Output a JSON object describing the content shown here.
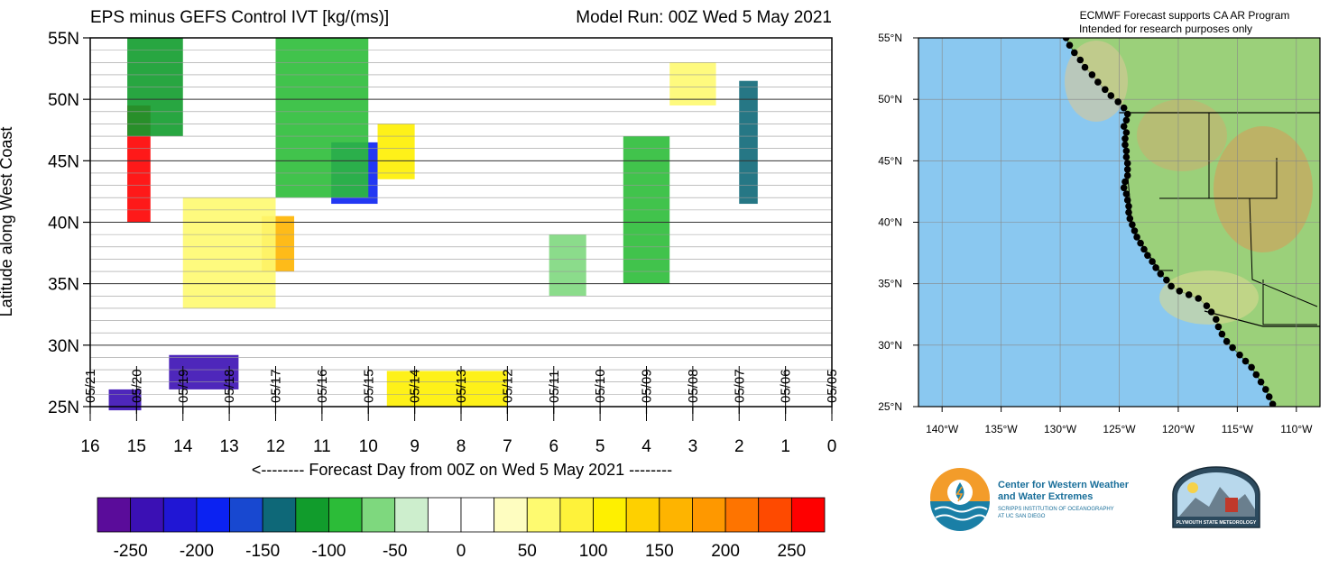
{
  "left_panel": {
    "title_left": "EPS minus GEFS Control IVT [kg/(ms)]",
    "title_right": "Model Run: 00Z Wed 5 May 2021",
    "ylabel": "Latitude along West Coast",
    "xlabel": "<-------- Forecast Day from 00Z on Wed 5 May 2021 --------"
  },
  "right_panel": {
    "note_line1": "ECMWF Forecast supports CA AR Program",
    "note_line2": "Intended for research purposes only"
  },
  "logos": {
    "cw3e_line1": "Center for Western Weather",
    "cw3e_line2": "and Water Extremes",
    "cw3e_line3": "SCRIPPS INSTITUTION OF OCEANOGRAPHY",
    "cw3e_line4": "AT UC SAN DIEGO",
    "psu_text": "PLYMOUTH STATE METEOROLOGY"
  },
  "chart_data": [
    {
      "type": "heatmap",
      "title": "EPS minus GEFS Control IVT [kg/(ms)]",
      "subtitle": "Model Run: 00Z Wed 5 May 2021",
      "xlabel": "<-------- Forecast Day from 00Z on Wed 5 May 2021 --------",
      "ylabel": "Latitude along West Coast",
      "x_reversed": true,
      "xlim": [
        16,
        0
      ],
      "ylim": [
        25,
        55
      ],
      "x_ticks": [
        16,
        15,
        14,
        13,
        12,
        11,
        10,
        9,
        8,
        7,
        6,
        5,
        4,
        3,
        2,
        1,
        0
      ],
      "y_ticks": [
        {
          "value": 25,
          "label": "25N"
        },
        {
          "value": 30,
          "label": "30N"
        },
        {
          "value": 35,
          "label": "35N"
        },
        {
          "value": 40,
          "label": "40N"
        },
        {
          "value": 45,
          "label": "45N"
        },
        {
          "value": 50,
          "label": "50N"
        },
        {
          "value": 55,
          "label": "55N"
        }
      ],
      "date_labels": [
        {
          "day": 0,
          "label": "05/05"
        },
        {
          "day": 1,
          "label": "05/06"
        },
        {
          "day": 2,
          "label": "05/07"
        },
        {
          "day": 3,
          "label": "05/08"
        },
        {
          "day": 4,
          "label": "05/09"
        },
        {
          "day": 5,
          "label": "05/10"
        },
        {
          "day": 6,
          "label": "05/11"
        },
        {
          "day": 7,
          "label": "05/12"
        },
        {
          "day": 8,
          "label": "05/13"
        },
        {
          "day": 9,
          "label": "05/14"
        },
        {
          "day": 10,
          "label": "05/15"
        },
        {
          "day": 11,
          "label": "05/16"
        },
        {
          "day": 12,
          "label": "05/17"
        },
        {
          "day": 13,
          "label": "05/18"
        },
        {
          "day": 14,
          "label": "05/19"
        },
        {
          "day": 15,
          "label": "05/20"
        },
        {
          "day": 16,
          "label": "05/21"
        }
      ],
      "colorbar": {
        "labels": [
          "-250",
          "-200",
          "-150",
          "-100",
          "-50",
          "0",
          "50",
          "100",
          "150",
          "200",
          "250"
        ],
        "colors": [
          "#5a0c9a",
          "#3b10b4",
          "#2016d4",
          "#0b22f2",
          "#1848d0",
          "#0e6878",
          "#119c2c",
          "#2cbc38",
          "#7ed87e",
          "#cdeecd",
          "#ffffff",
          "#ffffff",
          "#fefdc0",
          "#fefa70",
          "#fef23a",
          "#fef000",
          "#fed000",
          "#feb400",
          "#fe9800",
          "#fe7400",
          "#fe4a00",
          "#fe0000"
        ]
      },
      "features": [
        {
          "day": [
            14.7,
            15.2
          ],
          "lat": [
            40.0,
            49.5
          ],
          "value": 250
        },
        {
          "day": [
            14.9,
            15.6
          ],
          "lat": [
            24.7,
            26.4
          ],
          "value": -250
        },
        {
          "day": [
            12.8,
            14.3
          ],
          "lat": [
            26.4,
            29.2
          ],
          "value": -230
        },
        {
          "day": [
            9.8,
            10.8
          ],
          "lat": [
            41.5,
            46.5
          ],
          "value": -180
        },
        {
          "day": [
            14.0,
            15.2
          ],
          "lat": [
            47.0,
            55.0
          ],
          "value": -120
        },
        {
          "day": [
            10.0,
            12.0
          ],
          "lat": [
            42.0,
            55.0
          ],
          "value": -90
        },
        {
          "day": [
            11.6,
            12.3
          ],
          "lat": [
            36.0,
            40.5
          ],
          "value": 150
        },
        {
          "day": [
            7.0,
            9.6
          ],
          "lat": [
            25.0,
            27.9
          ],
          "value": 100
        },
        {
          "day": [
            9.0,
            9.8
          ],
          "lat": [
            43.5,
            48.0
          ],
          "value": 110
        },
        {
          "day": [
            3.5,
            4.5
          ],
          "lat": [
            35.0,
            47.0
          ],
          "value": -90
        },
        {
          "day": [
            1.6,
            2.0
          ],
          "lat": [
            41.5,
            51.5
          ],
          "value": -140
        },
        {
          "day": [
            2.5,
            3.5
          ],
          "lat": [
            49.5,
            53.0
          ],
          "value": 70
        },
        {
          "day": [
            5.3,
            6.1
          ],
          "lat": [
            34.0,
            39.0
          ],
          "value": -60
        },
        {
          "day": [
            12.0,
            14.0
          ],
          "lat": [
            33.0,
            42.0
          ],
          "value": 60
        },
        {
          "day": [
            0.0,
            16.0
          ],
          "lat": [
            25.0,
            55.0
          ],
          "value": 0
        }
      ]
    },
    {
      "type": "map",
      "note": [
        "ECMWF Forecast supports CA AR Program",
        "Intended for research purposes only"
      ],
      "lon_ticks": [
        "140°W",
        "135°W",
        "130°W",
        "125°W",
        "120°W",
        "115°W",
        "110°W"
      ],
      "lat_ticks": [
        "25°N",
        "30°N",
        "35°N",
        "40°N",
        "45°N",
        "50°N",
        "55°N"
      ],
      "lon_range": [
        -142,
        -108
      ],
      "lat_range": [
        25,
        55
      ],
      "coast_points": [
        [
          -129.5,
          55.0
        ],
        [
          -129.2,
          54.4
        ],
        [
          -128.8,
          53.8
        ],
        [
          -128.3,
          53.2
        ],
        [
          -127.9,
          52.6
        ],
        [
          -127.3,
          52.0
        ],
        [
          -126.8,
          51.4
        ],
        [
          -126.2,
          50.8
        ],
        [
          -125.7,
          50.3
        ],
        [
          -125.1,
          49.8
        ],
        [
          -124.6,
          49.3
        ],
        [
          -124.3,
          48.8
        ],
        [
          -124.4,
          48.3
        ],
        [
          -124.6,
          47.8
        ],
        [
          -124.4,
          47.3
        ],
        [
          -124.5,
          46.8
        ],
        [
          -124.5,
          46.3
        ],
        [
          -124.4,
          45.8
        ],
        [
          -124.4,
          45.3
        ],
        [
          -124.3,
          44.8
        ],
        [
          -124.3,
          44.3
        ],
        [
          -124.3,
          43.8
        ],
        [
          -124.5,
          43.3
        ],
        [
          -124.6,
          42.8
        ],
        [
          -124.4,
          42.3
        ],
        [
          -124.3,
          41.8
        ],
        [
          -124.2,
          41.3
        ],
        [
          -124.2,
          40.8
        ],
        [
          -124.1,
          40.3
        ],
        [
          -123.9,
          39.8
        ],
        [
          -123.7,
          39.3
        ],
        [
          -123.5,
          38.8
        ],
        [
          -123.2,
          38.3
        ],
        [
          -122.9,
          37.8
        ],
        [
          -122.6,
          37.3
        ],
        [
          -122.2,
          36.8
        ],
        [
          -121.9,
          36.3
        ],
        [
          -121.5,
          35.8
        ],
        [
          -121.0,
          35.3
        ],
        [
          -120.6,
          34.8
        ],
        [
          -119.9,
          34.4
        ],
        [
          -119.1,
          34.1
        ],
        [
          -118.3,
          33.8
        ],
        [
          -117.6,
          33.2
        ],
        [
          -117.2,
          32.7
        ],
        [
          -116.8,
          32.1
        ],
        [
          -116.6,
          31.5
        ],
        [
          -116.3,
          30.9
        ],
        [
          -115.9,
          30.3
        ],
        [
          -115.4,
          29.8
        ],
        [
          -114.8,
          29.2
        ],
        [
          -114.3,
          28.7
        ],
        [
          -113.8,
          28.2
        ],
        [
          -113.4,
          27.6
        ],
        [
          -113.0,
          27.0
        ],
        [
          -112.6,
          26.4
        ],
        [
          -112.3,
          25.8
        ],
        [
          -112.0,
          25.2
        ]
      ]
    }
  ]
}
